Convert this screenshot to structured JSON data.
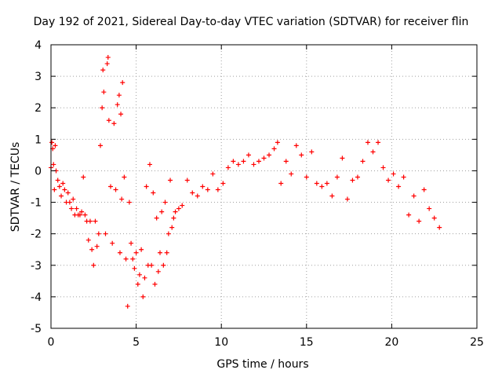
{
  "chart_data": {
    "type": "scatter",
    "title": "Day 192 of 2021, Sidereal Day-to-day VTEC variation (SDTVAR) for receiver flin",
    "xlabel": "GPS time / hours",
    "ylabel": "SDTVAR / TECUs",
    "xlim": [
      0,
      25
    ],
    "ylim": [
      -5,
      4
    ],
    "xticks": [
      0,
      5,
      10,
      15,
      20,
      25
    ],
    "yticks": [
      -5,
      -4,
      -3,
      -2,
      -1,
      0,
      1,
      2,
      3,
      4
    ],
    "grid": true,
    "marker": "+",
    "color": "#ff0000",
    "series": [
      {
        "name": "SDTVAR",
        "points": [
          [
            0.0,
            0.1
          ],
          [
            0.05,
            0.9
          ],
          [
            0.1,
            0.7
          ],
          [
            0.15,
            0.2
          ],
          [
            0.2,
            -0.6
          ],
          [
            0.25,
            0.8
          ],
          [
            0.3,
            0.0
          ],
          [
            0.4,
            -0.3
          ],
          [
            0.5,
            -0.5
          ],
          [
            0.6,
            -0.8
          ],
          [
            0.7,
            -0.4
          ],
          [
            0.8,
            -0.6
          ],
          [
            0.9,
            -1.0
          ],
          [
            1.0,
            -0.7
          ],
          [
            1.1,
            -1.0
          ],
          [
            1.2,
            -1.2
          ],
          [
            1.3,
            -0.9
          ],
          [
            1.4,
            -1.4
          ],
          [
            1.5,
            -1.2
          ],
          [
            1.6,
            -1.4
          ],
          [
            1.7,
            -1.4
          ],
          [
            1.8,
            -1.3
          ],
          [
            1.9,
            -0.2
          ],
          [
            2.0,
            -1.4
          ],
          [
            2.1,
            -1.6
          ],
          [
            2.2,
            -2.2
          ],
          [
            2.3,
            -1.6
          ],
          [
            2.4,
            -2.5
          ],
          [
            2.5,
            -3.0
          ],
          [
            2.6,
            -1.6
          ],
          [
            2.7,
            -2.4
          ],
          [
            2.8,
            -2.0
          ],
          [
            2.9,
            0.8
          ],
          [
            3.0,
            2.0
          ],
          [
            3.05,
            3.2
          ],
          [
            3.1,
            2.5
          ],
          [
            3.2,
            -2.0
          ],
          [
            3.3,
            3.4
          ],
          [
            3.35,
            3.6
          ],
          [
            3.4,
            1.6
          ],
          [
            3.5,
            -0.5
          ],
          [
            3.6,
            -2.3
          ],
          [
            3.7,
            1.5
          ],
          [
            3.8,
            -0.6
          ],
          [
            3.9,
            2.1
          ],
          [
            4.0,
            2.4
          ],
          [
            4.05,
            -2.6
          ],
          [
            4.1,
            1.8
          ],
          [
            4.15,
            -0.9
          ],
          [
            4.2,
            2.8
          ],
          [
            4.3,
            -0.2
          ],
          [
            4.4,
            -2.8
          ],
          [
            4.5,
            -4.3
          ],
          [
            4.6,
            -1.0
          ],
          [
            4.7,
            -2.3
          ],
          [
            4.8,
            -2.8
          ],
          [
            4.9,
            -3.1
          ],
          [
            5.0,
            -2.6
          ],
          [
            5.1,
            -3.6
          ],
          [
            5.2,
            -3.3
          ],
          [
            5.3,
            -2.5
          ],
          [
            5.4,
            -4.0
          ],
          [
            5.5,
            -3.4
          ],
          [
            5.6,
            -0.5
          ],
          [
            5.7,
            -3.0
          ],
          [
            5.8,
            0.2
          ],
          [
            5.9,
            -3.0
          ],
          [
            6.0,
            -0.7
          ],
          [
            6.1,
            -3.6
          ],
          [
            6.2,
            -1.5
          ],
          [
            6.3,
            -3.2
          ],
          [
            6.4,
            -2.6
          ],
          [
            6.5,
            -1.3
          ],
          [
            6.6,
            -3.0
          ],
          [
            6.7,
            -1.0
          ],
          [
            6.8,
            -2.6
          ],
          [
            6.9,
            -2.0
          ],
          [
            7.0,
            -0.3
          ],
          [
            7.1,
            -1.8
          ],
          [
            7.2,
            -1.5
          ],
          [
            7.3,
            -1.3
          ],
          [
            7.5,
            -1.2
          ],
          [
            7.7,
            -1.1
          ],
          [
            8.0,
            -0.3
          ],
          [
            8.3,
            -0.7
          ],
          [
            8.6,
            -0.8
          ],
          [
            8.9,
            -0.5
          ],
          [
            9.2,
            -0.6
          ],
          [
            9.5,
            -0.1
          ],
          [
            9.8,
            -0.6
          ],
          [
            10.1,
            -0.4
          ],
          [
            10.4,
            0.1
          ],
          [
            10.7,
            0.3
          ],
          [
            11.0,
            0.2
          ],
          [
            11.3,
            0.3
          ],
          [
            11.6,
            0.5
          ],
          [
            11.9,
            0.2
          ],
          [
            12.2,
            0.3
          ],
          [
            12.5,
            0.4
          ],
          [
            12.8,
            0.5
          ],
          [
            13.1,
            0.7
          ],
          [
            13.3,
            0.9
          ],
          [
            13.5,
            -0.4
          ],
          [
            13.8,
            0.3
          ],
          [
            14.1,
            -0.1
          ],
          [
            14.4,
            0.8
          ],
          [
            14.7,
            0.5
          ],
          [
            15.0,
            -0.2
          ],
          [
            15.3,
            0.6
          ],
          [
            15.6,
            -0.4
          ],
          [
            15.9,
            -0.5
          ],
          [
            16.2,
            -0.4
          ],
          [
            16.5,
            -0.8
          ],
          [
            16.8,
            -0.2
          ],
          [
            17.1,
            0.4
          ],
          [
            17.4,
            -0.9
          ],
          [
            17.7,
            -0.3
          ],
          [
            18.0,
            -0.2
          ],
          [
            18.3,
            0.3
          ],
          [
            18.6,
            0.9
          ],
          [
            18.9,
            0.6
          ],
          [
            19.2,
            0.9
          ],
          [
            19.5,
            0.1
          ],
          [
            19.8,
            -0.3
          ],
          [
            20.1,
            -0.1
          ],
          [
            20.4,
            -0.5
          ],
          [
            20.7,
            -0.2
          ],
          [
            21.0,
            -1.4
          ],
          [
            21.3,
            -0.8
          ],
          [
            21.6,
            -1.6
          ],
          [
            21.9,
            -0.6
          ],
          [
            22.2,
            -1.2
          ],
          [
            22.5,
            -1.5
          ],
          [
            22.8,
            -1.8
          ]
        ]
      }
    ]
  }
}
